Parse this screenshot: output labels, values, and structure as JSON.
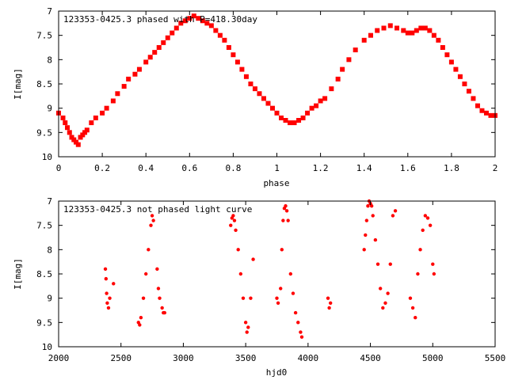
{
  "chart_data": [
    {
      "type": "scatter",
      "title": "123353-0425.3 phased with P=418.30day",
      "xlabel": "phase",
      "ylabel": "I[mag]",
      "xlim": [
        0,
        2
      ],
      "ylim": [
        10,
        7
      ],
      "y_inverted": true,
      "grid": false,
      "xticks": [
        0,
        0.2,
        0.4,
        0.6,
        0.8,
        1,
        1.2,
        1.4,
        1.6,
        1.8,
        2
      ],
      "xtick_labels": [
        "0",
        "0.2",
        "0.4",
        "0.6",
        "0.8",
        "1",
        "1.2",
        "1.4",
        "1.6",
        "1.8",
        "2"
      ],
      "yticks": [
        7,
        7.5,
        8,
        8.5,
        9,
        9.5,
        10
      ],
      "ytick_labels": [
        "7",
        "7.5",
        "8",
        "8.5",
        "9",
        "9.5",
        "10"
      ],
      "marker": "filled-square",
      "color": "#ff0000",
      "series": [
        {
          "x": [
            0.0,
            0.02,
            0.03,
            0.04,
            0.05,
            0.06,
            0.07,
            0.08,
            0.09,
            0.1,
            0.11,
            0.12,
            0.13,
            0.15,
            0.17,
            0.2,
            0.22,
            0.25,
            0.27,
            0.3,
            0.32,
            0.35,
            0.37,
            0.4,
            0.42,
            0.44,
            0.46,
            0.48,
            0.5,
            0.52,
            0.54,
            0.56,
            0.58,
            0.6,
            0.62,
            0.64,
            0.66,
            0.68,
            0.7,
            0.72,
            0.74,
            0.76,
            0.78,
            0.8,
            0.82,
            0.84,
            0.86,
            0.88,
            0.9,
            0.92,
            0.94,
            0.96,
            0.98,
            1.0,
            1.02,
            1.04,
            1.06,
            1.08,
            1.1,
            1.12,
            1.14,
            1.16,
            1.18,
            1.2,
            1.22,
            1.25,
            1.28,
            1.3,
            1.33,
            1.36,
            1.4,
            1.43,
            1.46,
            1.49,
            1.52,
            1.55,
            1.58,
            1.6,
            1.62,
            1.64,
            1.66,
            1.68,
            1.7,
            1.72,
            1.74,
            1.76,
            1.78,
            1.8,
            1.82,
            1.84,
            1.86,
            1.88,
            1.9,
            1.92,
            1.94,
            1.96,
            1.98,
            2.0
          ],
          "y": [
            9.1,
            9.2,
            9.3,
            9.4,
            9.5,
            9.6,
            9.65,
            9.7,
            9.75,
            9.6,
            9.55,
            9.5,
            9.45,
            9.3,
            9.2,
            9.1,
            9.0,
            8.85,
            8.7,
            8.55,
            8.4,
            8.3,
            8.2,
            8.05,
            7.95,
            7.85,
            7.75,
            7.65,
            7.55,
            7.45,
            7.35,
            7.25,
            7.2,
            7.15,
            7.1,
            7.15,
            7.2,
            7.25,
            7.3,
            7.4,
            7.5,
            7.6,
            7.75,
            7.9,
            8.05,
            8.2,
            8.35,
            8.5,
            8.6,
            8.7,
            8.8,
            8.9,
            9.0,
            9.1,
            9.2,
            9.25,
            9.3,
            9.3,
            9.25,
            9.2,
            9.1,
            9.0,
            8.95,
            8.85,
            8.8,
            8.6,
            8.4,
            8.2,
            8.0,
            7.8,
            7.6,
            7.5,
            7.4,
            7.35,
            7.3,
            7.35,
            7.4,
            7.45,
            7.45,
            7.4,
            7.35,
            7.35,
            7.4,
            7.5,
            7.6,
            7.75,
            7.9,
            8.05,
            8.2,
            8.35,
            8.5,
            8.65,
            8.8,
            8.95,
            9.05,
            9.1,
            9.15,
            9.15
          ]
        }
      ]
    },
    {
      "type": "scatter",
      "title": "123353-0425.3 not phased light curve",
      "xlabel": "hjd0",
      "ylabel": "I[mag]",
      "xlim": [
        2000,
        5500
      ],
      "ylim": [
        10,
        7
      ],
      "y_inverted": true,
      "grid": false,
      "xticks": [
        2000,
        2500,
        3000,
        3500,
        4000,
        4500,
        5000,
        5500
      ],
      "xtick_labels": [
        "2000",
        "2500",
        "3000",
        "3500",
        "4000",
        "4500",
        "5000",
        "5500"
      ],
      "yticks": [
        7,
        7.5,
        8,
        8.5,
        9,
        9.5,
        10
      ],
      "ytick_labels": [
        "7",
        "7.5",
        "8",
        "8.5",
        "9",
        "9.5",
        "10"
      ],
      "marker": "filled-dot",
      "color": "#ff0000",
      "series": [
        {
          "x": [
            2375,
            2380,
            2385,
            2390,
            2400,
            2410,
            2440,
            2640,
            2650,
            2660,
            2680,
            2700,
            2720,
            2740,
            2750,
            2760,
            2790,
            2800,
            2810,
            2830,
            2840,
            2850,
            3380,
            3390,
            3400,
            3410,
            3420,
            3440,
            3460,
            3480,
            3500,
            3510,
            3520,
            3540,
            3560,
            3750,
            3760,
            3780,
            3790,
            3800,
            3810,
            3820,
            3830,
            3840,
            3860,
            3880,
            3900,
            3920,
            3940,
            3950,
            4160,
            4170,
            4180,
            4450,
            4460,
            4470,
            4480,
            4490,
            4500,
            4510,
            4520,
            4540,
            4560,
            4580,
            4600,
            4620,
            4640,
            4660,
            4680,
            4700,
            4820,
            4840,
            4860,
            4880,
            4900,
            4920,
            4940,
            4960,
            4980,
            5000,
            5010
          ],
          "y": [
            8.4,
            8.6,
            8.9,
            9.1,
            9.2,
            9.0,
            8.7,
            9.5,
            9.55,
            9.4,
            9.0,
            8.5,
            8.0,
            7.5,
            7.3,
            7.4,
            8.4,
            8.8,
            9.0,
            9.2,
            9.3,
            9.3,
            7.5,
            7.35,
            7.3,
            7.4,
            7.6,
            8.0,
            8.5,
            9.0,
            9.5,
            9.7,
            9.6,
            9.0,
            8.2,
            9.0,
            9.1,
            8.8,
            8.0,
            7.4,
            7.15,
            7.1,
            7.2,
            7.4,
            8.5,
            8.9,
            9.3,
            9.5,
            9.7,
            9.8,
            9.0,
            9.2,
            9.1,
            8.0,
            7.7,
            7.4,
            7.1,
            7.0,
            7.05,
            7.1,
            7.3,
            7.8,
            8.3,
            8.8,
            9.2,
            9.1,
            8.9,
            8.3,
            7.3,
            7.2,
            9.0,
            9.2,
            9.4,
            8.5,
            8.0,
            7.6,
            7.3,
            7.35,
            7.5,
            8.3,
            8.5
          ]
        }
      ]
    }
  ]
}
